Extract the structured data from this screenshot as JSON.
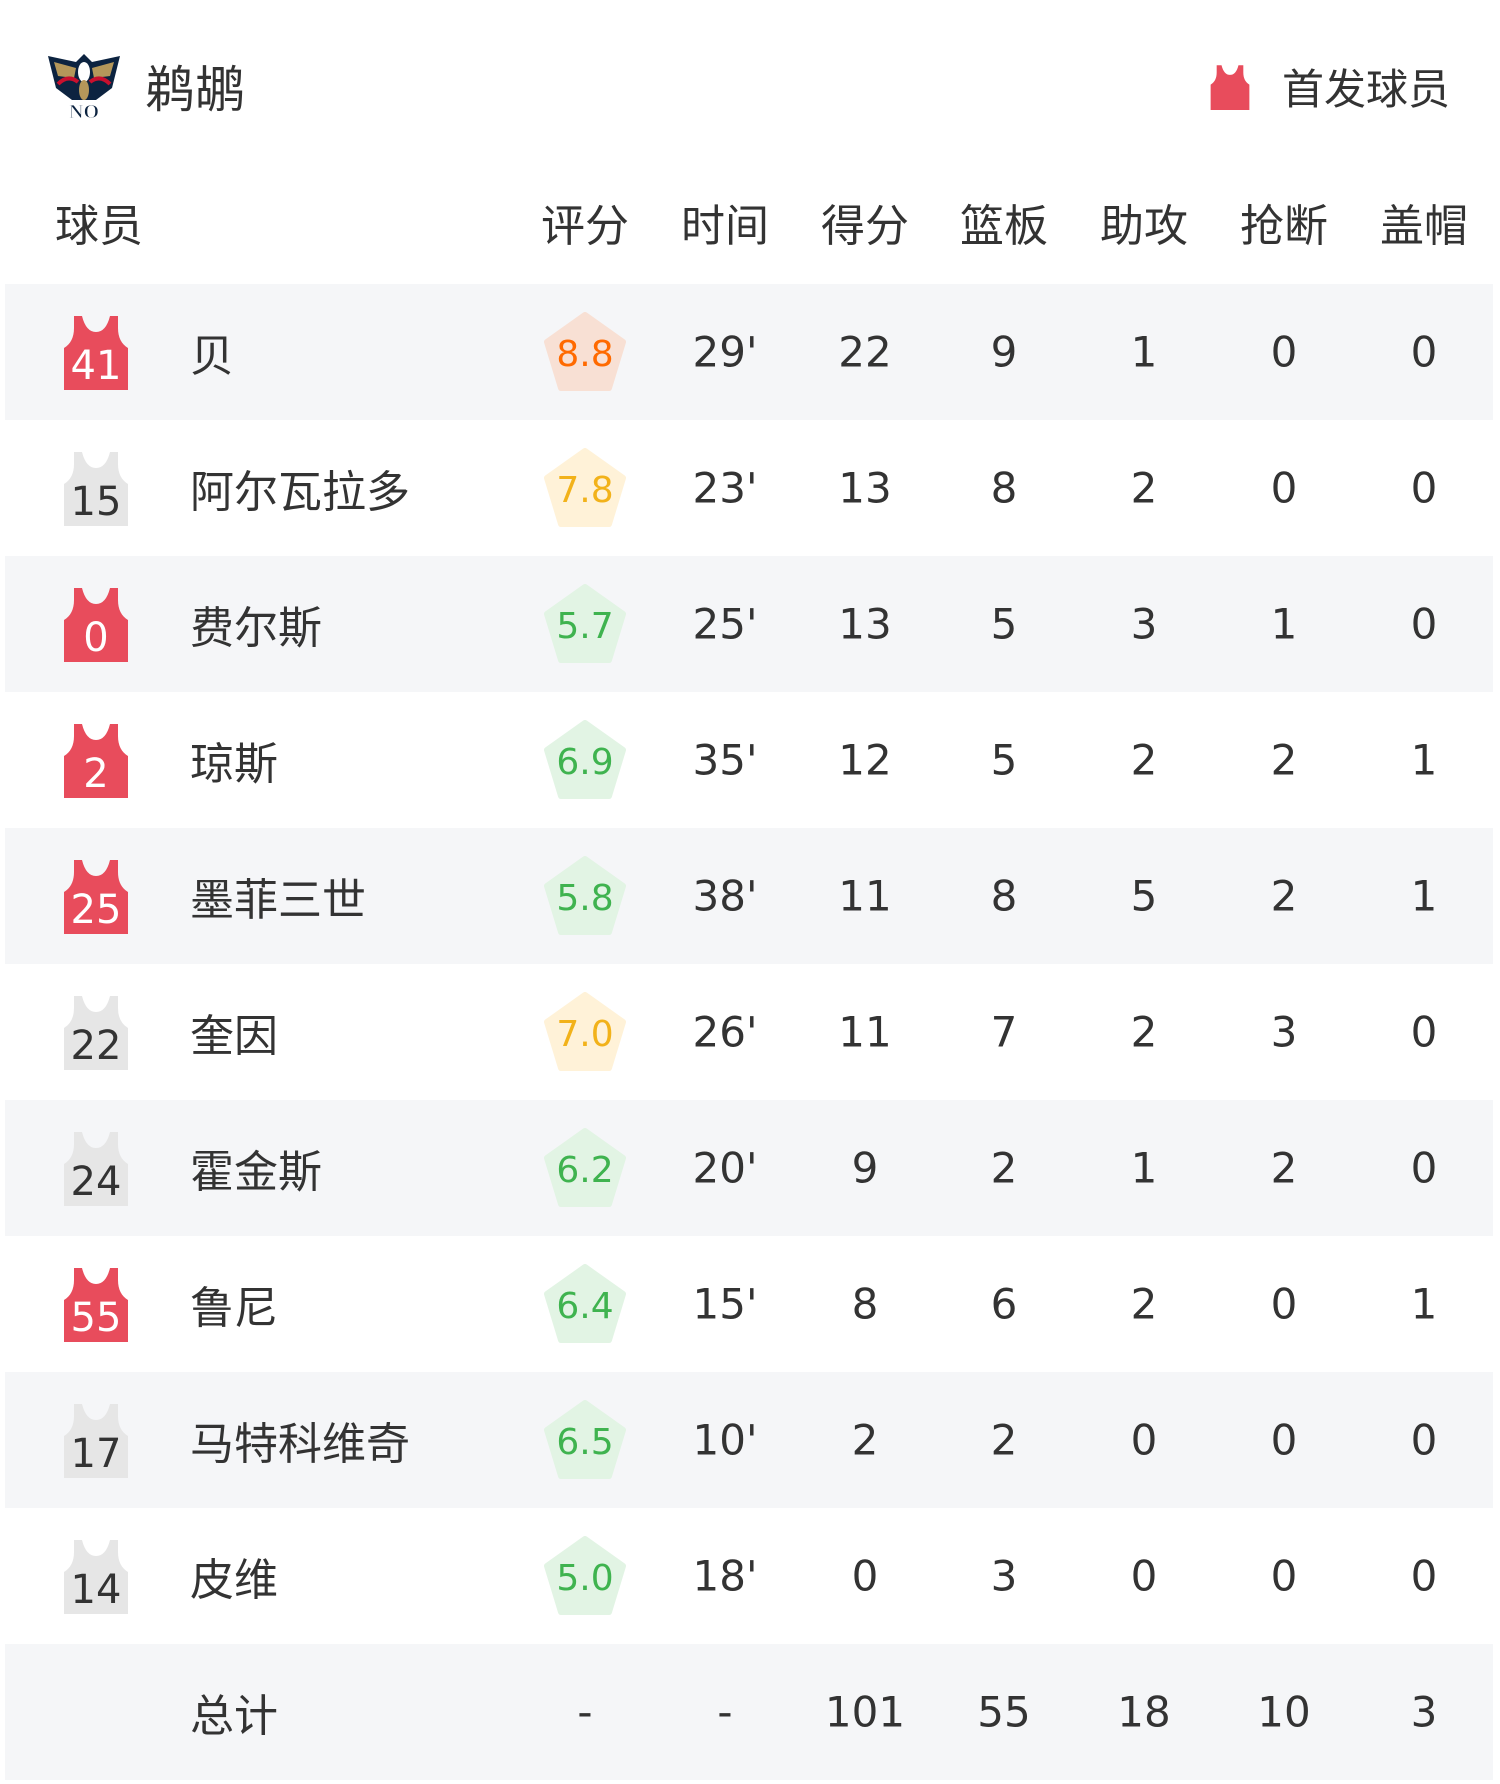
{
  "team": {
    "name": "鹈鹕",
    "logo_text": "NO"
  },
  "legend": {
    "label": "首发球员",
    "color": "#e84c5c"
  },
  "columns": [
    "球员",
    "评分",
    "时间",
    "得分",
    "篮板",
    "助攻",
    "抢断",
    "盖帽"
  ],
  "rating_colors": {
    "high": {
      "text": "#ff6a00",
      "bg": "#f8e0d4"
    },
    "mid": {
      "text": "#f2b21a",
      "bg": "#fff2d8"
    },
    "low": {
      "text": "#3fb34f",
      "bg": "#e2f4e4"
    }
  },
  "players": [
    {
      "number": "41",
      "name": "贝",
      "starter": true,
      "rating": "8.8",
      "min": "29'",
      "pts": "22",
      "reb": "9",
      "ast": "1",
      "stl": "0",
      "blk": "0"
    },
    {
      "number": "15",
      "name": "阿尔瓦拉多",
      "starter": false,
      "rating": "7.8",
      "min": "23'",
      "pts": "13",
      "reb": "8",
      "ast": "2",
      "stl": "0",
      "blk": "0"
    },
    {
      "number": "0",
      "name": "费尔斯",
      "starter": true,
      "rating": "5.7",
      "min": "25'",
      "pts": "13",
      "reb": "5",
      "ast": "3",
      "stl": "1",
      "blk": "0"
    },
    {
      "number": "2",
      "name": "琼斯",
      "starter": true,
      "rating": "6.9",
      "min": "35'",
      "pts": "12",
      "reb": "5",
      "ast": "2",
      "stl": "2",
      "blk": "1"
    },
    {
      "number": "25",
      "name": "墨菲三世",
      "starter": true,
      "rating": "5.8",
      "min": "38'",
      "pts": "11",
      "reb": "8",
      "ast": "5",
      "stl": "2",
      "blk": "1"
    },
    {
      "number": "22",
      "name": "奎因",
      "starter": false,
      "rating": "7.0",
      "min": "26'",
      "pts": "11",
      "reb": "7",
      "ast": "2",
      "stl": "3",
      "blk": "0"
    },
    {
      "number": "24",
      "name": "霍金斯",
      "starter": false,
      "rating": "6.2",
      "min": "20'",
      "pts": "9",
      "reb": "2",
      "ast": "1",
      "stl": "2",
      "blk": "0"
    },
    {
      "number": "55",
      "name": "鲁尼",
      "starter": true,
      "rating": "6.4",
      "min": "15'",
      "pts": "8",
      "reb": "6",
      "ast": "2",
      "stl": "0",
      "blk": "1"
    },
    {
      "number": "17",
      "name": "马特科维奇",
      "starter": false,
      "rating": "6.5",
      "min": "10'",
      "pts": "2",
      "reb": "2",
      "ast": "0",
      "stl": "0",
      "blk": "0"
    },
    {
      "number": "14",
      "name": "皮维",
      "starter": false,
      "rating": "5.0",
      "min": "18'",
      "pts": "0",
      "reb": "3",
      "ast": "0",
      "stl": "0",
      "blk": "0"
    }
  ],
  "total": {
    "label": "总计",
    "rating": "-",
    "min": "-",
    "pts": "101",
    "reb": "55",
    "ast": "18",
    "stl": "10",
    "blk": "3"
  }
}
